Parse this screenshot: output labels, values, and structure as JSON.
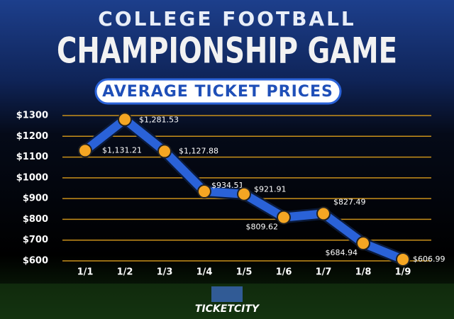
{
  "chart_data": {
    "type": "line",
    "title": "COLLEGE FOOTBALL",
    "subtitle": "CHAMPIONSHIP GAME",
    "caption": "AVERAGE TICKET PRICES",
    "logo": "TICKETCITY",
    "categories": [
      "1/1",
      "1/2",
      "1/3",
      "1/4",
      "1/5",
      "1/6",
      "1/7",
      "1/8",
      "1/9"
    ],
    "series": [
      {
        "color": "#2a62d8",
        "values": [
          1131.21,
          1281.53,
          1127.88,
          934.51,
          921.91,
          809.62,
          827.49,
          684.94,
          606.99
        ],
        "value_labels": [
          "$1,131.21",
          "$1,281.53",
          "$1,127.88",
          "$934.51",
          "$921.91",
          "$809.62",
          "$827.49",
          "$684.94",
          "$606.99"
        ]
      }
    ],
    "marker_color": "#f5a623",
    "grid_color": "#c8901a",
    "grid": true,
    "ylim": [
      600,
      1300
    ],
    "yticks": [
      {
        "value": 600,
        "label": "$600"
      },
      {
        "value": 700,
        "label": "$700"
      },
      {
        "value": 800,
        "label": "$800"
      },
      {
        "value": 900,
        "label": "$900"
      },
      {
        "value": 1000,
        "label": "$1000"
      },
      {
        "value": 1100,
        "label": "$1100"
      },
      {
        "value": 1200,
        "label": "$1200"
      },
      {
        "value": 1300,
        "label": "$1300"
      }
    ]
  }
}
